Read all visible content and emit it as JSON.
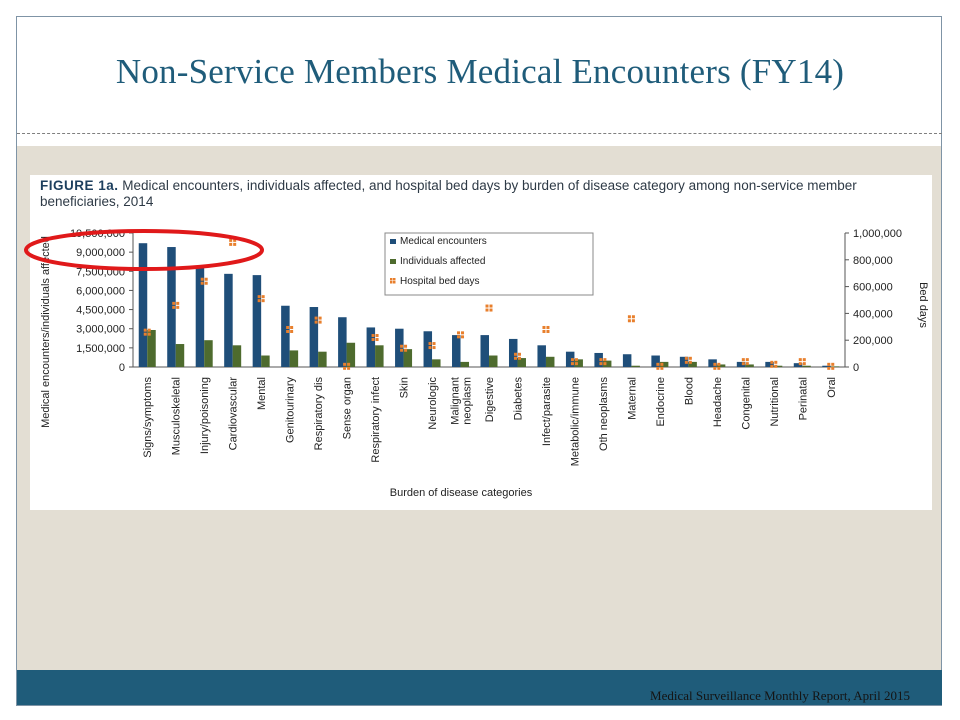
{
  "slide": {
    "title": "Non-Service Members Medical Encounters (FY14)",
    "footer": "Medical Surveillance Monthly Report, April 2015"
  },
  "figure": {
    "label": "FIGURE 1a.",
    "caption": "Medical encounters, individuals affected, and hospital bed days by burden of disease category among non-service member beneficiaries, 2014"
  },
  "colors": {
    "title": "#1f5c7a",
    "panel": "#e3ded3",
    "medical_encounters": "#1f4e79",
    "individuals_affected": "#4e6b2e",
    "hospital_bed_days": "#e87f2c",
    "highlight_ellipse": "#e0191a"
  },
  "chart_data": {
    "type": "bar",
    "title": "",
    "xlabel": "Burden of disease categories",
    "ylabel": "Medical encounters/individuals affected",
    "y2label": "Bed days",
    "ylim": [
      0,
      10500000
    ],
    "y2lim": [
      0,
      1000000
    ],
    "yticks": [
      "10,500,000",
      "9,000,000",
      "7,500,000",
      "6,000,000",
      "4,500,000",
      "3,000,000",
      "1,500,000",
      "0"
    ],
    "y2ticks": [
      "1,000,000",
      "800,000",
      "600,000",
      "400,000",
      "200,000",
      "0"
    ],
    "legend_position": "top-center",
    "categories": [
      "Signs/symptoms",
      "Musculoskeletal",
      "Injury/poisoning",
      "Cardiovascular",
      "Mental",
      "Genitourinary",
      "Respiratory dis",
      "Sense organ",
      "Respiratory infect",
      "Skin",
      "Neurologic",
      "Malignant neoplasm",
      "Digestive",
      "Diabetes",
      "Infect/parasite",
      "Metabolic/immune",
      "Oth neoplasms",
      "Maternal",
      "Endocrine",
      "Blood",
      "Headache",
      "Congenital",
      "Nutritional",
      "Perinatal",
      "Oral"
    ],
    "series": [
      {
        "name": "Medical encounters",
        "type": "bar",
        "axis": "left",
        "values": [
          9700000,
          9400000,
          7800000,
          7300000,
          7200000,
          4800000,
          4700000,
          3900000,
          3100000,
          3000000,
          2800000,
          2500000,
          2500000,
          2200000,
          1700000,
          1200000,
          1100000,
          1000000,
          900000,
          800000,
          600000,
          400000,
          400000,
          300000,
          100000
        ]
      },
      {
        "name": "Individuals affected",
        "type": "bar",
        "axis": "left",
        "values": [
          2900000,
          1800000,
          2100000,
          1700000,
          900000,
          1300000,
          1200000,
          1900000,
          1700000,
          1400000,
          600000,
          400000,
          900000,
          700000,
          800000,
          600000,
          500000,
          100000,
          400000,
          400000,
          200000,
          200000,
          100000,
          100000,
          50000
        ]
      },
      {
        "name": "Hospital bed days",
        "type": "marker",
        "axis": "right",
        "values": [
          260000,
          460000,
          640000,
          930000,
          510000,
          280000,
          350000,
          5000,
          220000,
          140000,
          160000,
          240000,
          440000,
          80000,
          280000,
          40000,
          40000,
          360000,
          5000,
          50000,
          5000,
          40000,
          20000,
          40000,
          5000
        ]
      }
    ]
  }
}
